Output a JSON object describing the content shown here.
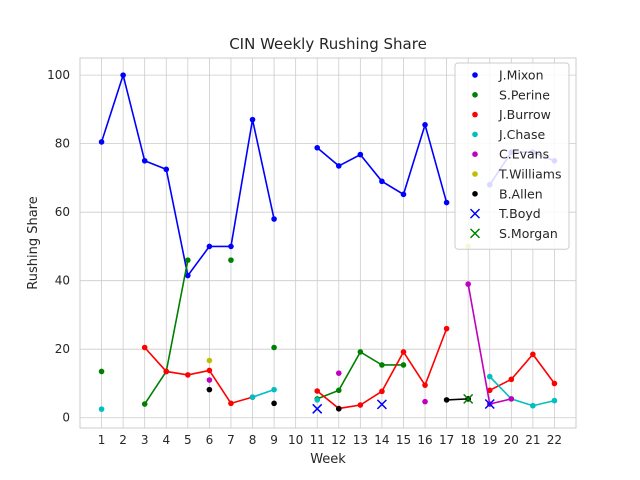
{
  "chart_data": {
    "type": "line",
    "title": "CIN Weekly Rushing Share",
    "xlabel": "Week",
    "ylabel": "Rushing Share",
    "xlim": [
      0,
      23
    ],
    "ylim": [
      -3,
      105
    ],
    "x_ticks": [
      1,
      2,
      3,
      4,
      5,
      6,
      7,
      8,
      9,
      10,
      11,
      12,
      13,
      14,
      15,
      16,
      17,
      18,
      19,
      20,
      21,
      22
    ],
    "y_ticks": [
      0,
      20,
      40,
      60,
      80,
      100
    ],
    "grid": true,
    "legend_position": "top-right",
    "series": [
      {
        "name": "J.Mixon",
        "color": "#0000ff",
        "marker": "dot",
        "points": [
          [
            1,
            80.5
          ],
          [
            2,
            100
          ],
          [
            3,
            75
          ],
          [
            4,
            72.5
          ],
          [
            5,
            41.5
          ],
          [
            6,
            50
          ],
          [
            7,
            50
          ],
          [
            8,
            87
          ],
          [
            9,
            58
          ],
          [
            11,
            78.8
          ],
          [
            12,
            73.5
          ],
          [
            13,
            76.8
          ],
          [
            14,
            69
          ],
          [
            15,
            65.2
          ],
          [
            16,
            85.5
          ],
          [
            17,
            62.8
          ],
          [
            19,
            68
          ],
          [
            20,
            77.5
          ],
          [
            21,
            77.5
          ],
          [
            22,
            75
          ]
        ]
      },
      {
        "name": "S.Perine",
        "color": "#008000",
        "marker": "dot",
        "points": [
          [
            1,
            13.5
          ],
          [
            3,
            4
          ],
          [
            4,
            13.5
          ],
          [
            5,
            46
          ],
          [
            7,
            46
          ],
          [
            9,
            20.5
          ],
          [
            11,
            5.5
          ],
          [
            12,
            8
          ],
          [
            13,
            19.2
          ],
          [
            14,
            15.4
          ],
          [
            15,
            15.4
          ],
          [
            18,
            5.5
          ]
        ]
      },
      {
        "name": "J.Burrow",
        "color": "#ff0000",
        "marker": "dot",
        "points": [
          [
            3,
            20.5
          ],
          [
            4,
            13.5
          ],
          [
            5,
            12.5
          ],
          [
            6,
            13.8
          ],
          [
            7,
            4.2
          ],
          [
            8,
            6
          ],
          [
            11,
            7.8
          ],
          [
            12,
            2.7
          ],
          [
            13,
            3.7
          ],
          [
            14,
            7.7
          ],
          [
            15,
            19.2
          ],
          [
            16,
            9.5
          ],
          [
            17,
            26
          ],
          [
            19,
            8
          ],
          [
            20,
            11.2
          ],
          [
            21,
            18.5
          ],
          [
            22,
            10
          ]
        ]
      },
      {
        "name": "J.Chase",
        "color": "#00bfbf",
        "marker": "dot",
        "points": [
          [
            1,
            2.5
          ],
          [
            8,
            6
          ],
          [
            9,
            8.2
          ],
          [
            11,
            5.2
          ],
          [
            19,
            12
          ],
          [
            20,
            5.5
          ],
          [
            21,
            3.5
          ],
          [
            22,
            5
          ]
        ]
      },
      {
        "name": "C.Evans",
        "color": "#bf00bf",
        "marker": "dot",
        "points": [
          [
            6,
            11
          ],
          [
            12,
            13
          ],
          [
            16,
            4.7
          ],
          [
            18,
            39
          ],
          [
            19,
            4
          ],
          [
            20,
            5.5
          ]
        ]
      },
      {
        "name": "T.Williams",
        "color": "#bfbf00",
        "marker": "dot",
        "points": [
          [
            6,
            16.7
          ],
          [
            18,
            50
          ]
        ]
      },
      {
        "name": "B.Allen",
        "color": "#000000",
        "marker": "dot",
        "points": [
          [
            6,
            8.2
          ],
          [
            9,
            4.2
          ],
          [
            12,
            2.6
          ],
          [
            17,
            5.2
          ],
          [
            18,
            5.5
          ]
        ]
      },
      {
        "name": "T.Boyd",
        "color": "#0000ff",
        "marker": "x",
        "points": [
          [
            11,
            2.6
          ],
          [
            14,
            3.9
          ],
          [
            19,
            4
          ]
        ]
      },
      {
        "name": "S.Morgan",
        "color": "#008000",
        "marker": "x",
        "points": [
          [
            18,
            5.5
          ]
        ]
      }
    ]
  }
}
